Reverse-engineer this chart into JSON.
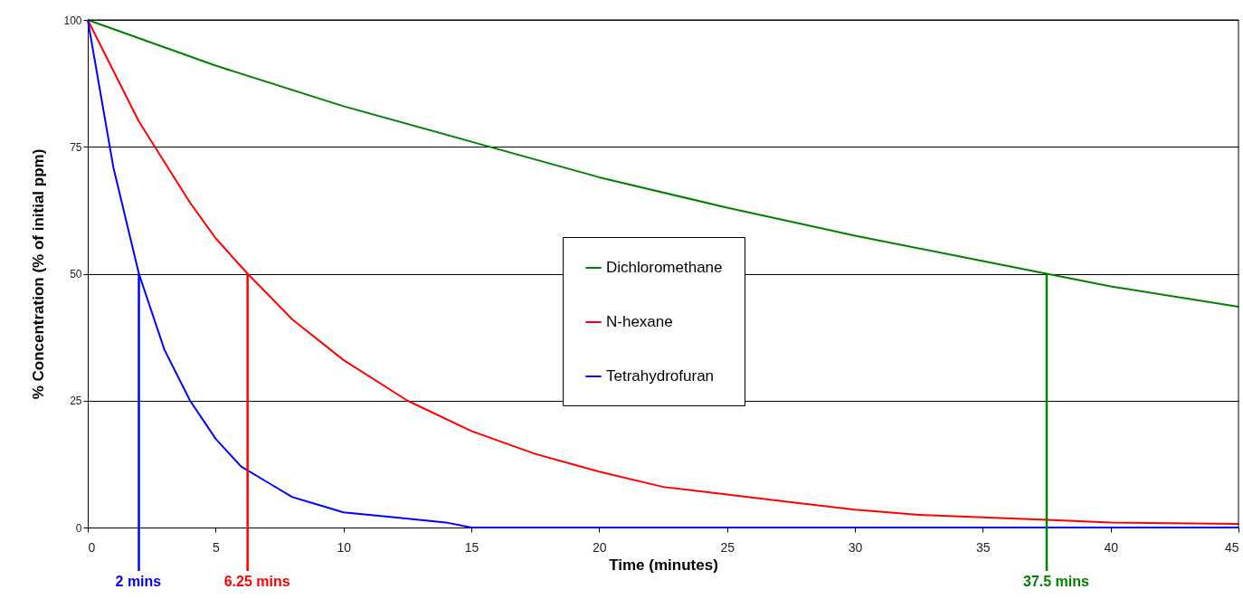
{
  "chart_data": {
    "type": "line",
    "xlabel": "Time (minutes)",
    "ylabel": "% Concentration (% of initial ppm)",
    "xlim": [
      0,
      45
    ],
    "xticks": [
      0,
      5,
      10,
      15,
      20,
      25,
      30,
      35,
      40,
      45
    ],
    "ylim": [
      0,
      100
    ],
    "yticks": [
      0,
      25,
      50,
      75,
      100
    ],
    "grid": "y",
    "legend": "center",
    "marker": "none",
    "line_style": "solid",
    "series": [
      {
        "name": "Dichloromethane",
        "color": "#008000",
        "x": [
          0,
          5,
          10,
          15,
          20,
          25,
          30,
          35,
          37.5,
          40,
          45
        ],
        "values": [
          100,
          91,
          83,
          76,
          69,
          63,
          57.5,
          52.5,
          50,
          47.5,
          43.5
        ]
      },
      {
        "name": "N-hexane",
        "color": "#ff0000",
        "x": [
          0,
          2,
          4,
          5,
          6.25,
          8,
          10,
          12.5,
          15,
          17.5,
          20,
          22.5,
          25,
          27.5,
          30,
          32.5,
          35,
          37.5,
          40,
          45
        ],
        "values": [
          100,
          80,
          64,
          57,
          50,
          41,
          33,
          25,
          19,
          14.5,
          11,
          8,
          6.5,
          5,
          3.5,
          2.5,
          2,
          1.5,
          1,
          0.7
        ]
      },
      {
        "name": "Tetrahydrofuran",
        "color": "#0000ff",
        "x": [
          0,
          1,
          2,
          3,
          4,
          5,
          6,
          7,
          8,
          9,
          10,
          12,
          14,
          15,
          20,
          30,
          45
        ],
        "values": [
          100,
          71,
          50,
          35,
          25,
          17.5,
          12,
          9,
          6,
          4.5,
          3,
          2,
          1,
          0,
          0,
          0,
          0
        ]
      }
    ],
    "ref_lines": [
      {
        "axis": "x",
        "value": 2,
        "label": "2 mins",
        "color": "#0000ff"
      },
      {
        "axis": "x",
        "value": 6.25,
        "label": "6.25 mins",
        "color": "#ff0000"
      },
      {
        "axis": "x",
        "value": 37.5,
        "label": "37.5 mins",
        "color": "#008000"
      }
    ]
  }
}
